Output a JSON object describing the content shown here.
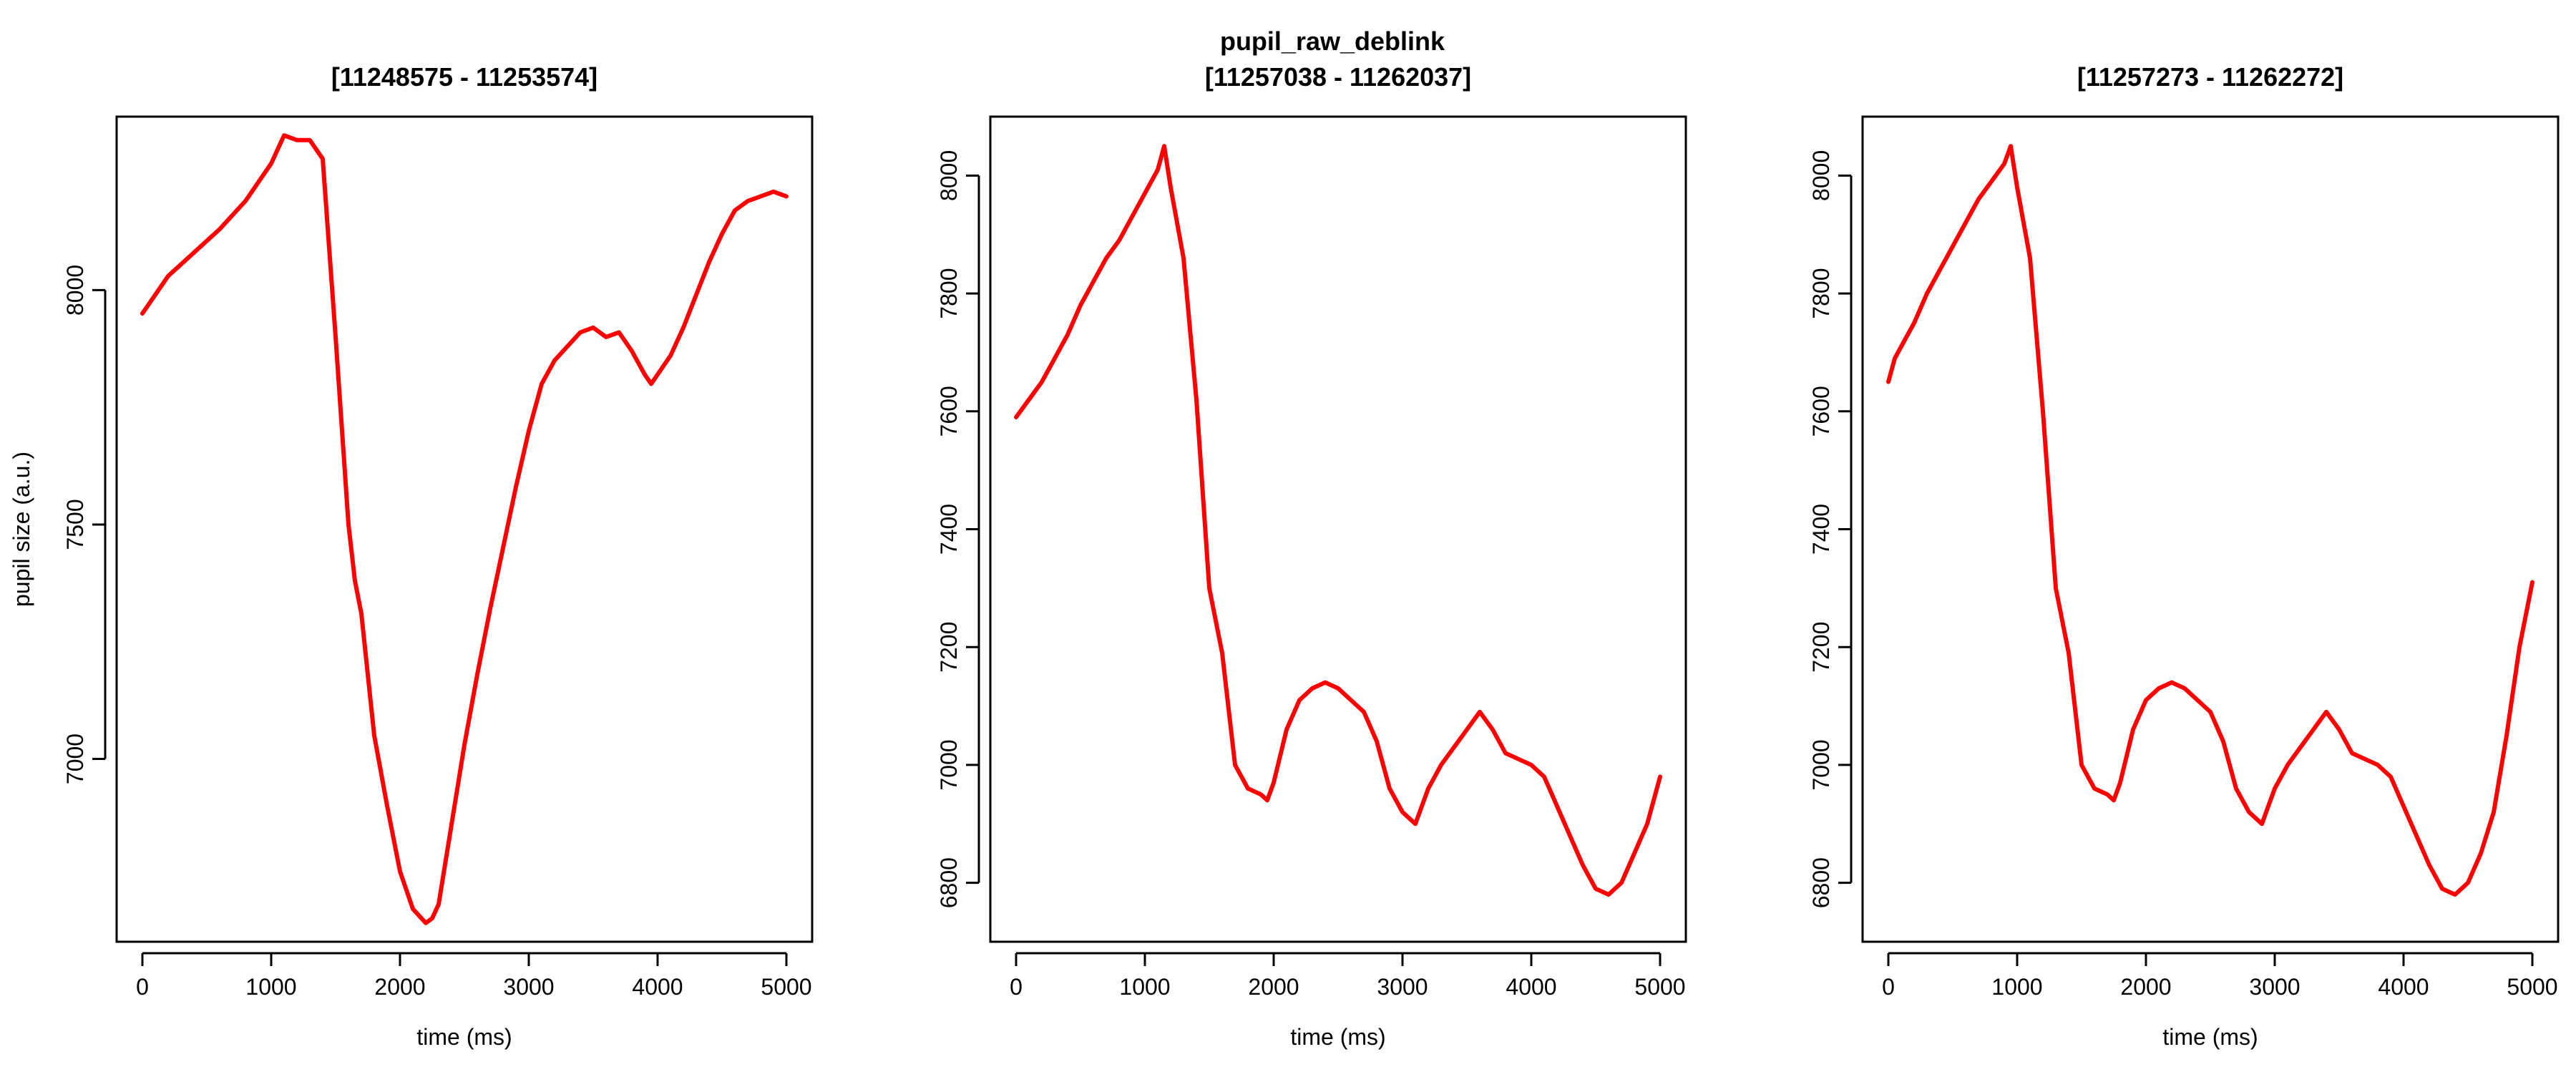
{
  "figure": {
    "main_title": "pupil_raw_deblink",
    "line_color": "#ff0000"
  },
  "chart_data": [
    {
      "type": "line",
      "title": "[11248575 - 11253574]",
      "xlabel": "time (ms)",
      "ylabel": "pupil size (a.u.)",
      "xlim": [
        -200,
        5200
      ],
      "ylim": [
        6610,
        8370
      ],
      "xticks": [
        0,
        1000,
        2000,
        3000,
        4000,
        5000
      ],
      "yticks": [
        7000,
        7500,
        8000
      ],
      "grid": false,
      "series": [
        {
          "x": [
            0,
            200,
            400,
            600,
            800,
            1000,
            1100,
            1200,
            1300,
            1400,
            1500,
            1550,
            1600,
            1650,
            1700,
            1800,
            1900,
            2000,
            2100,
            2200,
            2250,
            2300,
            2400,
            2500,
            2600,
            2700,
            2800,
            2900,
            3000,
            3100,
            3200,
            3300,
            3400,
            3500,
            3600,
            3700,
            3800,
            3900,
            3950,
            4000,
            4100,
            4200,
            4300,
            4400,
            4500,
            4600,
            4700,
            4800,
            4900,
            5000
          ],
          "y": [
            7950,
            8030,
            8080,
            8130,
            8190,
            8270,
            8330,
            8320,
            8320,
            8280,
            7900,
            7700,
            7500,
            7380,
            7310,
            7050,
            6900,
            6760,
            6680,
            6650,
            6660,
            6690,
            6860,
            7030,
            7180,
            7320,
            7450,
            7580,
            7700,
            7800,
            7850,
            7880,
            7910,
            7920,
            7900,
            7910,
            7870,
            7820,
            7800,
            7820,
            7860,
            7920,
            7990,
            8060,
            8120,
            8170,
            8190,
            8200,
            8210,
            8200
          ]
        }
      ]
    },
    {
      "type": "line",
      "title": "[11257038 - 11262037]",
      "xlabel": "time (ms)",
      "ylabel": "",
      "xlim": [
        -200,
        5200
      ],
      "ylim": [
        6700,
        8100
      ],
      "xticks": [
        0,
        1000,
        2000,
        3000,
        4000,
        5000
      ],
      "yticks": [
        6800,
        7000,
        7200,
        7400,
        7600,
        7800,
        8000
      ],
      "grid": false,
      "series": [
        {
          "x": [
            0,
            100,
            200,
            300,
            400,
            500,
            600,
            700,
            800,
            900,
            1000,
            1100,
            1150,
            1200,
            1300,
            1400,
            1500,
            1600,
            1700,
            1800,
            1900,
            1950,
            2000,
            2100,
            2200,
            2300,
            2400,
            2500,
            2600,
            2700,
            2800,
            2900,
            3000,
            3100,
            3200,
            3300,
            3400,
            3500,
            3600,
            3700,
            3800,
            3900,
            4000,
            4100,
            4200,
            4300,
            4400,
            4500,
            4600,
            4700,
            4800,
            4900,
            5000
          ],
          "y": [
            7590,
            7620,
            7650,
            7690,
            7730,
            7780,
            7820,
            7860,
            7890,
            7930,
            7970,
            8010,
            8050,
            7980,
            7860,
            7620,
            7300,
            7190,
            7000,
            6960,
            6950,
            6940,
            6970,
            7060,
            7110,
            7130,
            7140,
            7130,
            7110,
            7090,
            7040,
            6960,
            6920,
            6900,
            6960,
            7000,
            7030,
            7060,
            7090,
            7060,
            7020,
            7010,
            7000,
            6980,
            6930,
            6880,
            6830,
            6790,
            6780,
            6800,
            6850,
            6900,
            6980
          ]
        }
      ]
    },
    {
      "type": "line",
      "title": "[11257273 - 11262272]",
      "xlabel": "time (ms)",
      "ylabel": "",
      "xlim": [
        -200,
        5200
      ],
      "ylim": [
        6700,
        8100
      ],
      "xticks": [
        0,
        1000,
        2000,
        3000,
        4000,
        5000
      ],
      "yticks": [
        6800,
        7000,
        7200,
        7400,
        7600,
        7800,
        8000
      ],
      "grid": false,
      "series": [
        {
          "x": [
            0,
            50,
            100,
            200,
            300,
            400,
            500,
            600,
            700,
            800,
            900,
            950,
            1000,
            1100,
            1200,
            1300,
            1400,
            1500,
            1600,
            1700,
            1750,
            1800,
            1900,
            2000,
            2100,
            2200,
            2300,
            2400,
            2500,
            2600,
            2700,
            2800,
            2900,
            3000,
            3100,
            3200,
            3300,
            3400,
            3500,
            3600,
            3700,
            3800,
            3900,
            4000,
            4100,
            4200,
            4300,
            4400,
            4500,
            4600,
            4700,
            4800,
            4900,
            5000
          ],
          "y": [
            7650,
            7690,
            7710,
            7750,
            7800,
            7840,
            7880,
            7920,
            7960,
            7990,
            8020,
            8050,
            7980,
            7860,
            7600,
            7300,
            7190,
            7000,
            6960,
            6950,
            6940,
            6970,
            7060,
            7110,
            7130,
            7140,
            7130,
            7110,
            7090,
            7040,
            6960,
            6920,
            6900,
            6960,
            7000,
            7030,
            7060,
            7090,
            7060,
            7020,
            7010,
            7000,
            6980,
            6930,
            6880,
            6830,
            6790,
            6780,
            6800,
            6850,
            6920,
            7050,
            7200,
            7310
          ]
        }
      ]
    }
  ]
}
